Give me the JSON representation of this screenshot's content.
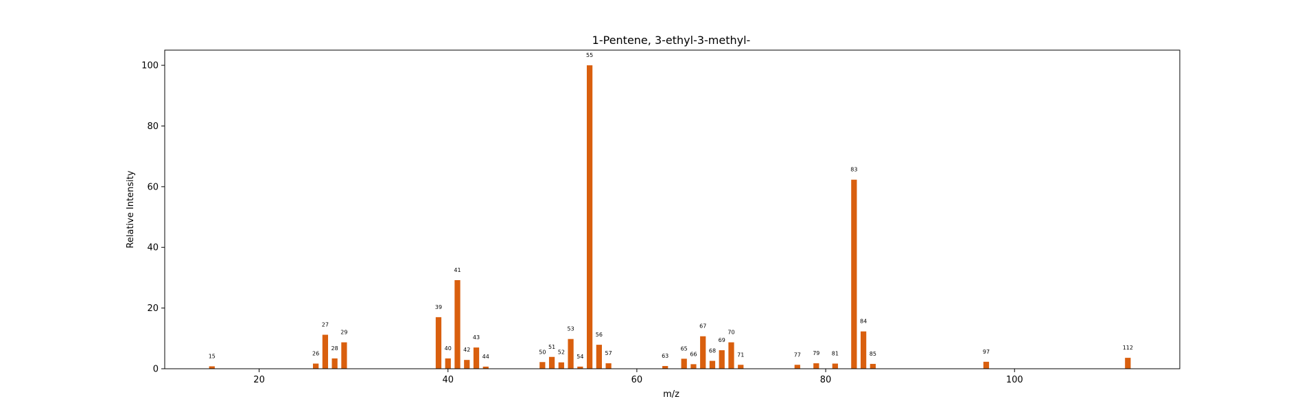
{
  "chart_data": {
    "type": "bar",
    "title": "1-Pentene, 3-ethyl-3-methyl-",
    "xlabel": "m/z",
    "ylabel": "Relative Intensity",
    "xlim": [
      10,
      117.5
    ],
    "ylim": [
      0,
      105
    ],
    "xticks": [
      20,
      40,
      60,
      80,
      100
    ],
    "yticks": [
      0,
      20,
      40,
      60,
      80,
      100
    ],
    "grid": false,
    "bar_color": "#d95f0e",
    "x": [
      15,
      26,
      27,
      28,
      29,
      39,
      40,
      41,
      42,
      43,
      44,
      50,
      51,
      52,
      53,
      54,
      55,
      56,
      57,
      63,
      65,
      66,
      67,
      68,
      69,
      70,
      71,
      77,
      79,
      81,
      83,
      84,
      85,
      97,
      112
    ],
    "values": [
      0.8,
      1.7,
      11.2,
      3.4,
      8.7,
      17.0,
      3.4,
      29.2,
      2.9,
      7.0,
      0.7,
      2.2,
      3.9,
      2.1,
      9.8,
      0.7,
      100.0,
      7.9,
      1.8,
      0.9,
      3.3,
      1.5,
      10.7,
      2.6,
      6.1,
      8.7,
      1.3,
      1.3,
      1.8,
      1.7,
      62.3,
      12.3,
      1.6,
      2.3,
      3.6
    ],
    "labels": [
      "15",
      "26",
      "27",
      "28",
      "29",
      "39",
      "40",
      "41",
      "42",
      "43",
      "44",
      "50",
      "51",
      "52",
      "53",
      "54",
      "55",
      "56",
      "57",
      "63",
      "65",
      "66",
      "67",
      "68",
      "69",
      "70",
      "71",
      "77",
      "79",
      "81",
      "83",
      "84",
      "85",
      "97",
      "112"
    ]
  }
}
